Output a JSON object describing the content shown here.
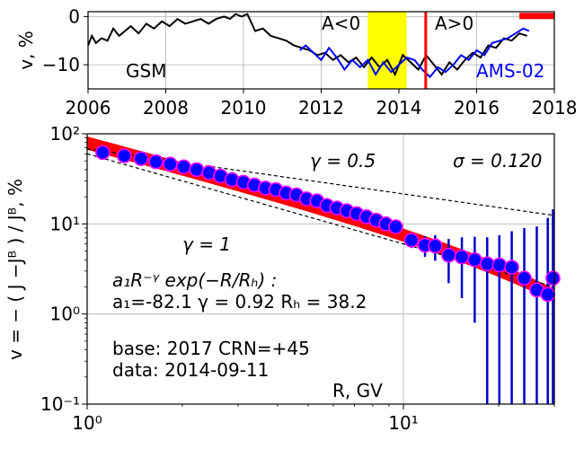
{
  "chart_data": [
    {
      "type": "line",
      "ylabel": "v, %",
      "xlim": [
        2006,
        2018
      ],
      "ylim": [
        -15,
        1
      ],
      "x_ticks": [
        "2006",
        "2008",
        "2010",
        "2012",
        "2014",
        "2016",
        "2018"
      ],
      "y_ticks": [
        "0",
        "−10"
      ],
      "grid": true,
      "texts": {
        "gsm": "GSM",
        "a_neg": "A<0",
        "a_pos": "A>0",
        "ams": "AMS-02"
      },
      "colors": {
        "gsm": "#000000",
        "ams": "#0000ff",
        "band": "#ffff00",
        "marker": "#ff0000"
      },
      "polarity_band": [
        2013.2,
        2014.2
      ],
      "marker_line_x": 2014.69,
      "red_bar": [
        2017.1,
        2018.0
      ],
      "red_bar_y": 0.2,
      "series": [
        {
          "name": "GSM",
          "x": [
            2006.0,
            2006.1,
            2006.2,
            2006.35,
            2006.5,
            2006.65,
            2006.8,
            2006.95,
            2007.1,
            2007.3,
            2007.5,
            2007.7,
            2007.9,
            2008.1,
            2008.3,
            2008.5,
            2008.7,
            2008.9,
            2009.1,
            2009.3,
            2009.5,
            2009.65,
            2009.8,
            2009.95,
            2010.1,
            2010.3,
            2010.5,
            2010.7,
            2010.9,
            2011.1,
            2011.3,
            2011.5,
            2011.7,
            2011.9,
            2012.1,
            2012.3,
            2012.5,
            2012.7,
            2012.9,
            2013.1,
            2013.3,
            2013.5,
            2013.7,
            2013.9,
            2014.1,
            2014.3,
            2014.5,
            2014.7,
            2014.9,
            2015.1,
            2015.3,
            2015.5,
            2015.7,
            2015.9,
            2016.1,
            2016.3,
            2016.5,
            2016.7,
            2016.9,
            2017.1,
            2017.3
          ],
          "y": [
            -6.0,
            -4.0,
            -5.5,
            -4.5,
            -5.0,
            -2.5,
            -4.0,
            -3.0,
            -2.0,
            -3.5,
            -1.5,
            -2.5,
            -1.0,
            -2.0,
            -0.5,
            -1.5,
            -1.0,
            -0.5,
            -1.5,
            -0.5,
            0.0,
            -0.5,
            0.5,
            0.0,
            0.5,
            -3.0,
            -2.5,
            -4.0,
            -4.5,
            -5.0,
            -6.0,
            -6.5,
            -7.0,
            -8.0,
            -7.5,
            -9.0,
            -8.0,
            -9.5,
            -8.5,
            -10.5,
            -8.5,
            -10.5,
            -9.0,
            -12.0,
            -8.0,
            -9.5,
            -11.0,
            -8.0,
            -10.0,
            -12.0,
            -9.5,
            -11.0,
            -9.0,
            -7.5,
            -8.5,
            -6.0,
            -6.5,
            -4.5,
            -5.0,
            -3.5,
            -4.0
          ]
        },
        {
          "name": "AMS-02",
          "x": [
            2011.45,
            2011.6,
            2011.8,
            2012.0,
            2012.2,
            2012.4,
            2012.6,
            2012.8,
            2013.0,
            2013.2,
            2013.4,
            2013.6,
            2013.8,
            2014.0,
            2014.2,
            2014.4,
            2014.6,
            2014.8,
            2015.0,
            2015.2,
            2015.4,
            2015.6,
            2015.8,
            2016.0,
            2016.2,
            2016.4,
            2016.6,
            2016.8,
            2017.0,
            2017.2,
            2017.35
          ],
          "y": [
            -7.0,
            -6.0,
            -7.5,
            -9.0,
            -6.5,
            -8.5,
            -11.0,
            -9.0,
            -10.5,
            -9.0,
            -12.0,
            -9.5,
            -11.5,
            -10.0,
            -8.5,
            -9.0,
            -11.0,
            -12.5,
            -10.5,
            -11.5,
            -10.0,
            -8.0,
            -9.0,
            -7.0,
            -8.0,
            -5.5,
            -5.0,
            -4.5,
            -3.5,
            -2.5,
            -3.0
          ]
        }
      ]
    },
    {
      "type": "scatter",
      "xlabel": "R, GV",
      "ylabel": "v = − ( J −Jᴮ ) / Jᴮ, %",
      "xscale": "log",
      "yscale": "log",
      "xlim": [
        1.0,
        30.0
      ],
      "ylim": [
        0.1,
        100
      ],
      "x_ticks": [
        "10⁰",
        "10¹"
      ],
      "y_ticks": [
        "10⁻¹",
        "10⁰",
        "10¹",
        "10²"
      ],
      "grid": true,
      "texts": {
        "gamma_half": "γ = 0.5",
        "gamma_one": "γ = 1",
        "sigma": "σ = 0.120",
        "formula": "a₁R⁻ᵞ exp(−R/Rₕ) :",
        "params": "a₁=-82.1  γ = 0.92  Rₕ = 38.2",
        "base": "base: 2017   CRN=+45",
        "data": "data: 2014-09-11"
      },
      "colors": {
        "fit_band": "#ff0000",
        "marker_fill": "#0000ff",
        "marker_edge": "#ff00ff",
        "error": "#0000cc",
        "ref_line": "#000000"
      },
      "fit": {
        "a1": -82.1,
        "gamma": 0.92,
        "RH": 38.2,
        "sigma": 0.12
      },
      "ref_lines": [
        {
          "gamma": 0.5,
          "y_at_1": 68
        },
        {
          "gamma": 1.0,
          "y_at_1": 60
        }
      ],
      "points": {
        "x": [
          1.12,
          1.31,
          1.48,
          1.65,
          1.83,
          2.02,
          2.22,
          2.43,
          2.64,
          2.87,
          3.12,
          3.38,
          3.66,
          3.95,
          4.26,
          4.59,
          4.94,
          5.33,
          5.73,
          6.16,
          6.62,
          7.11,
          7.64,
          8.2,
          8.8,
          9.45,
          10.6,
          11.7,
          12.6,
          13.9,
          15.3,
          16.8,
          18.4,
          20.1,
          22.0,
          24.1,
          26.4,
          28.6,
          29.7
        ],
        "y": [
          62,
          57,
          53,
          49,
          46,
          43,
          40,
          37,
          34,
          31,
          29,
          27,
          25,
          24,
          22,
          21,
          19,
          18,
          16,
          15,
          14,
          13,
          12,
          11,
          10,
          9.3,
          6.6,
          5.8,
          5.7,
          4.5,
          4.3,
          4.0,
          3.6,
          3.5,
          3.3,
          2.5,
          1.85,
          1.65,
          2.5
        ],
        "err": [
          0,
          0,
          0,
          0,
          0,
          0,
          0,
          0,
          0,
          0,
          0,
          0,
          0,
          0,
          0,
          0,
          0,
          0,
          0,
          0,
          0,
          0,
          0,
          0,
          0,
          0.6,
          1.2,
          1.5,
          1.8,
          2.3,
          2.8,
          3.2,
          3.5,
          4.0,
          5.0,
          6.5,
          7.5,
          10.0,
          12.0
        ]
      }
    }
  ]
}
